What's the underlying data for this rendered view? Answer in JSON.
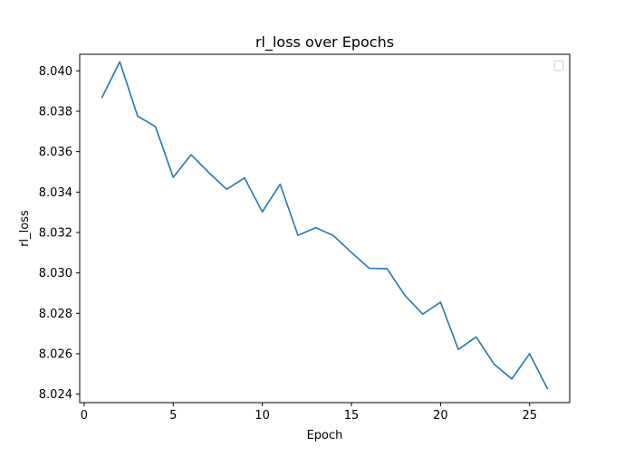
{
  "chart_data": {
    "type": "line",
    "title": "rl_loss over Epochs",
    "xlabel": "Epoch",
    "ylabel": "rl_loss",
    "xlim": [
      -0.25,
      27.25
    ],
    "ylim": [
      8.02358,
      8.04082
    ],
    "xticks": [
      0,
      5,
      10,
      15,
      20,
      25
    ],
    "xtick_labels": [
      "0",
      "5",
      "10",
      "15",
      "20",
      "25"
    ],
    "yticks": [
      8.024,
      8.026,
      8.028,
      8.03,
      8.032,
      8.034,
      8.036,
      8.038,
      8.04
    ],
    "ytick_labels": [
      "8.024",
      "8.026",
      "8.028",
      "8.030",
      "8.032",
      "8.034",
      "8.036",
      "8.038",
      "8.040"
    ],
    "grid": false,
    "legend": "upper-right, empty",
    "series": [
      {
        "color": "#1f77b4",
        "x": [
          1,
          2,
          3,
          4,
          5,
          6,
          7,
          8,
          9,
          10,
          11,
          12,
          13,
          14,
          15,
          16,
          17,
          18,
          19,
          20,
          21,
          22,
          23,
          24,
          25,
          26
        ],
        "values": [
          8.03868,
          8.04045,
          8.03776,
          8.03724,
          8.03473,
          8.03585,
          8.03496,
          8.03414,
          8.0347,
          8.03302,
          8.03439,
          8.03186,
          8.03224,
          8.03184,
          8.03101,
          8.03023,
          8.03021,
          8.02889,
          8.02796,
          8.02855,
          8.02621,
          8.02683,
          8.02549,
          8.02475,
          8.026,
          8.02427
        ]
      }
    ]
  }
}
